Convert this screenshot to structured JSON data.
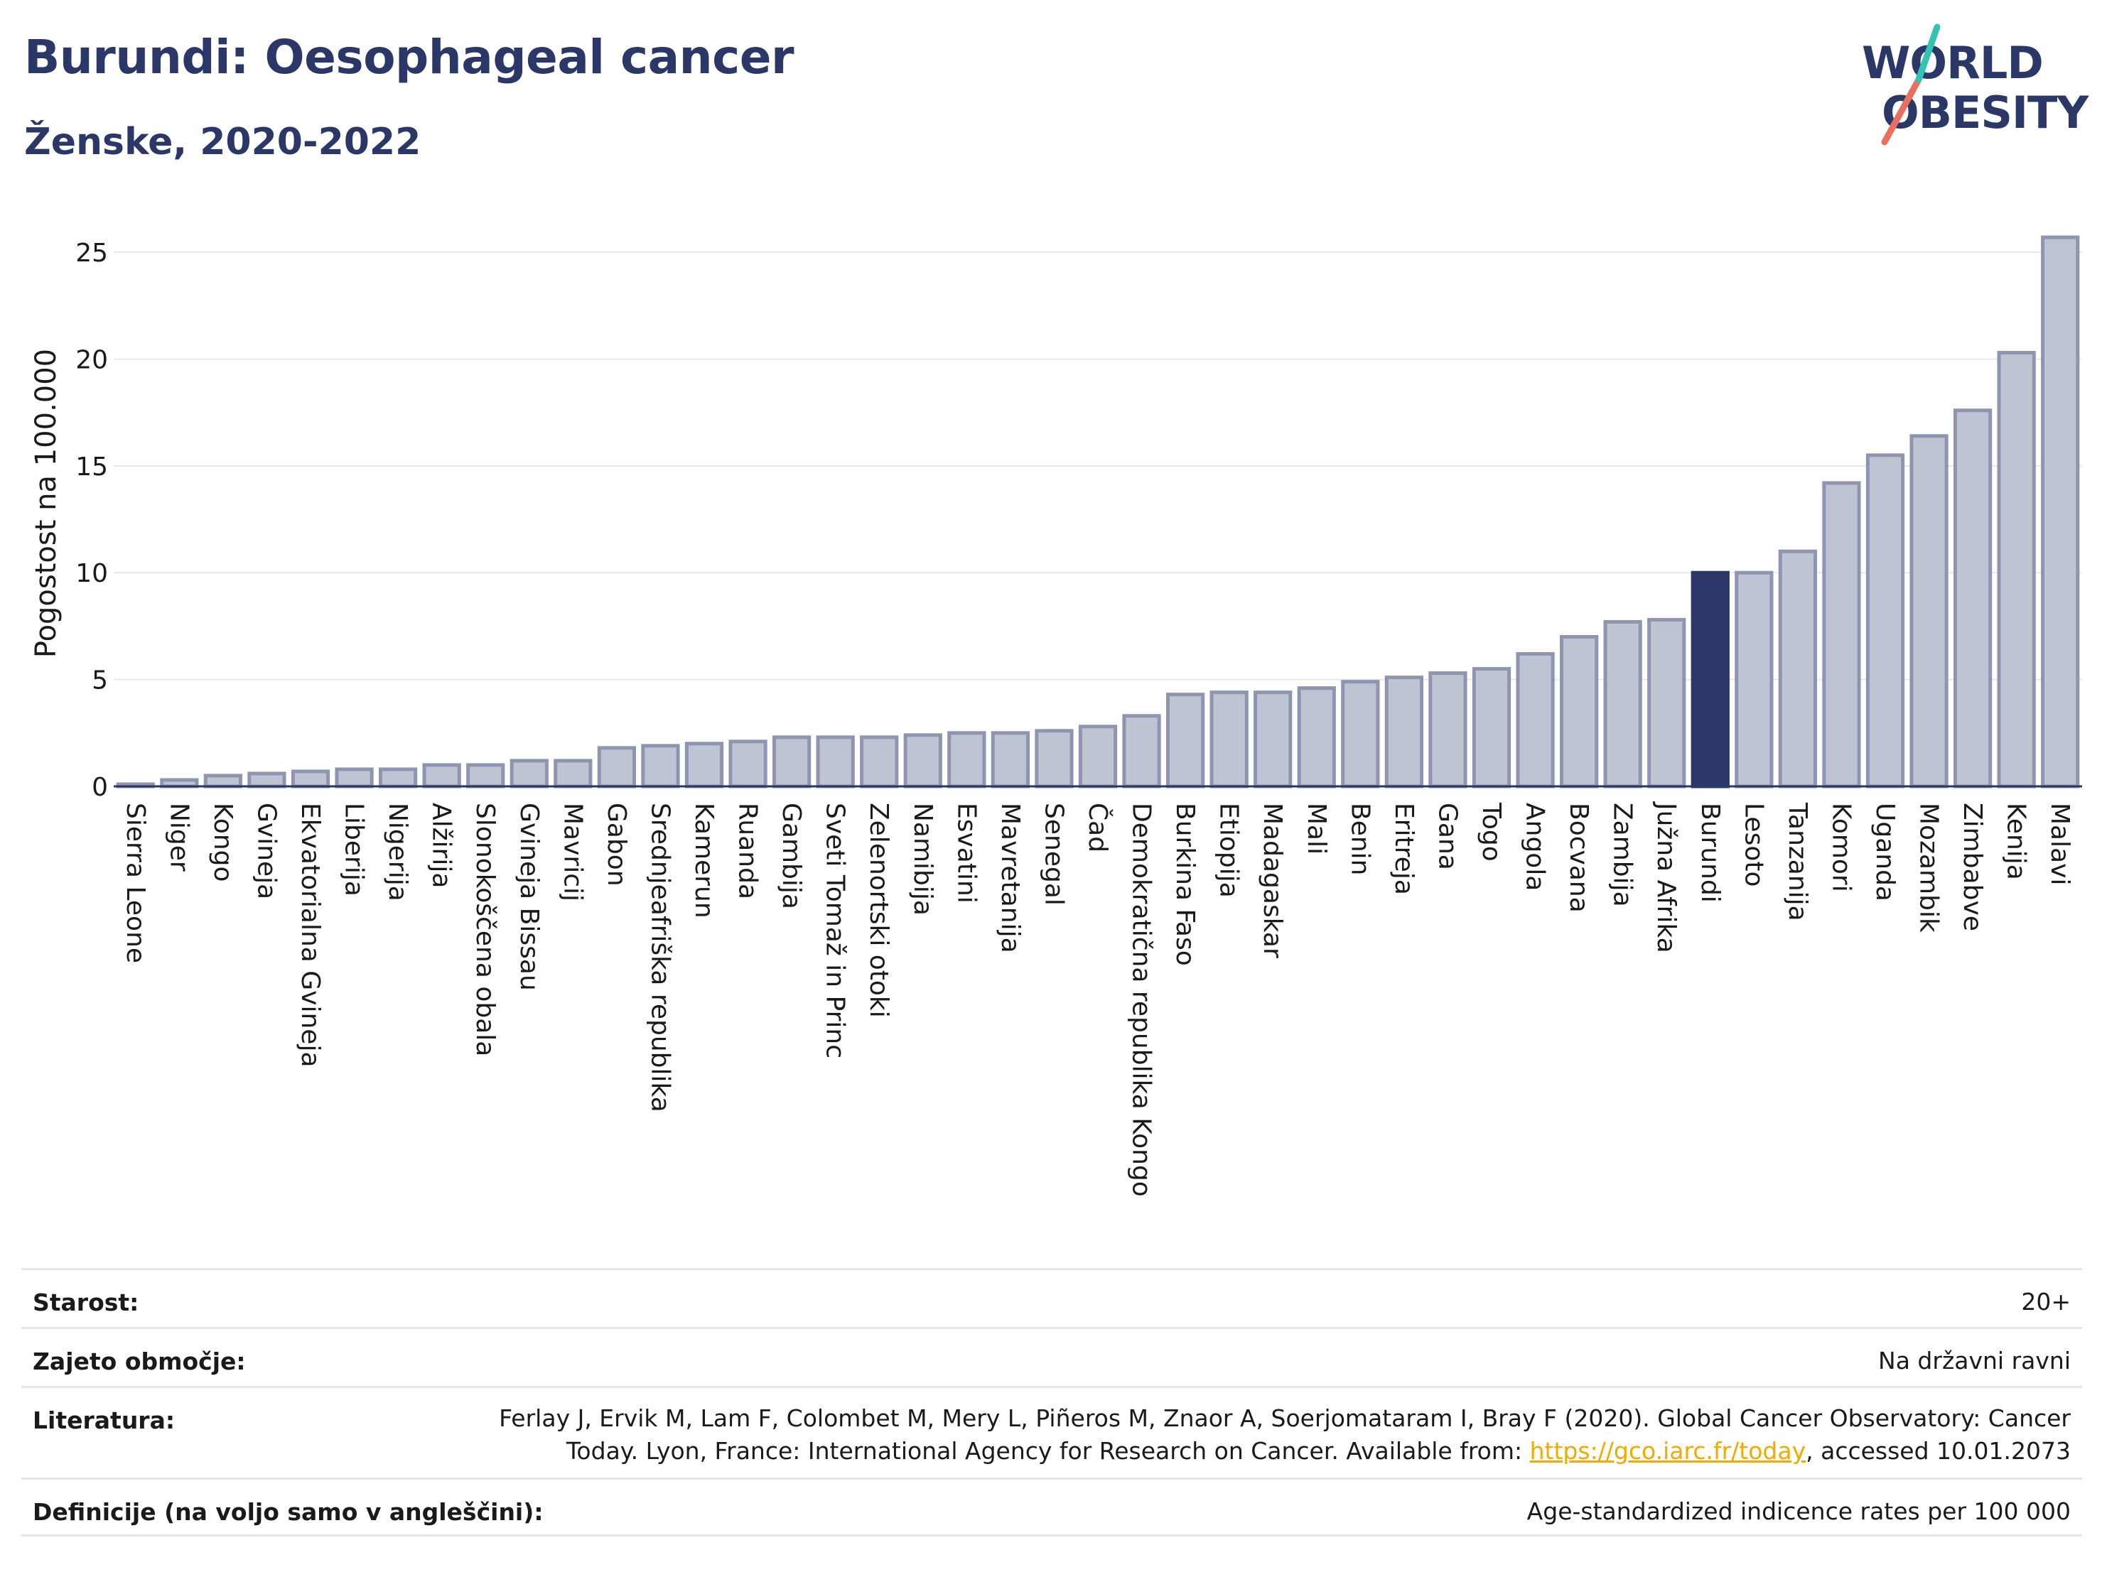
{
  "header": {
    "title": "Burundi: Oesophageal cancer",
    "subtitle": "Ženske, 2020-2022"
  },
  "logo": {
    "line1": "WORLD",
    "line2": "OBESITY"
  },
  "colors": {
    "highlight": "#2b3766",
    "bar": "#bfc4d3",
    "bar_edge": "#8e95b0",
    "accent_teal": "#34c2b5",
    "accent_coral": "#e8705f",
    "link": "#f2a900"
  },
  "chart_data": {
    "type": "bar",
    "title": "Burundi: Oesophageal cancer",
    "subtitle": "Ženske, 2020-2022",
    "ylabel": "Pogostost na 100.000",
    "xlabel": "",
    "ylim": [
      0,
      26.5
    ],
    "yticks": [
      0,
      5,
      10,
      15,
      20,
      25
    ],
    "grid": true,
    "highlight": "Burundi",
    "categories": [
      "Sierra Leone",
      "Niger",
      "Kongo",
      "Gvineja",
      "Ekvatorialna Gvineja",
      "Liberija",
      "Nigerija",
      "Alžirija",
      "Slonokoščena obala",
      "Gvineja Bissau",
      "Mavricij",
      "Gabon",
      "Srednjeafriška republika",
      "Kamerun",
      "Ruanda",
      "Gambija",
      "Sveti Tomaž in Princ",
      "Zelenortski otoki",
      "Namibija",
      "Esvatini",
      "Mavretanija",
      "Senegal",
      "Čad",
      "Demokratična republika Kongo",
      "Burkina Faso",
      "Etiopija",
      "Madagaskar",
      "Mali",
      "Benin",
      "Eritreja",
      "Gana",
      "Togo",
      "Angola",
      "Bocvana",
      "Zambija",
      "Južna Afrika",
      "Burundi",
      "Lesoto",
      "Tanzanija",
      "Komori",
      "Uganda",
      "Mozambik",
      "Zimbabve",
      "Kenija",
      "Malavi"
    ],
    "values": [
      0.1,
      0.3,
      0.5,
      0.6,
      0.7,
      0.8,
      0.8,
      1.0,
      1.0,
      1.2,
      1.2,
      1.8,
      1.9,
      2.0,
      2.1,
      2.3,
      2.3,
      2.3,
      2.4,
      2.5,
      2.5,
      2.6,
      2.8,
      3.3,
      4.3,
      4.4,
      4.4,
      4.6,
      4.9,
      5.1,
      5.3,
      5.5,
      6.2,
      7.0,
      7.7,
      7.8,
      10.0,
      10.0,
      11.0,
      14.2,
      15.5,
      16.4,
      17.6,
      20.3,
      25.7
    ]
  },
  "info": {
    "rows": [
      {
        "key": "Starost:",
        "value": "20+"
      },
      {
        "key": "Zajeto območje:",
        "value": "Na državni ravni"
      },
      {
        "key": "Literatura:",
        "value_line1": "Ferlay J, Ervik M, Lam F, Colombet M, Mery L, Piñeros M, Znaor A, Soerjomataram I, Bray F (2020). Global Cancer Observatory: Cancer",
        "value_line2_pre": "Today. Lyon, France: International Agency for Research on Cancer. Available from: ",
        "value_link": "https://gco.iarc.fr/today",
        "value_line2_post": ", accessed 10.01.2073"
      },
      {
        "key": "Definicije (na voljo samo v angleščini):",
        "value": "Age-standardized indicence rates per 100 000"
      }
    ]
  }
}
